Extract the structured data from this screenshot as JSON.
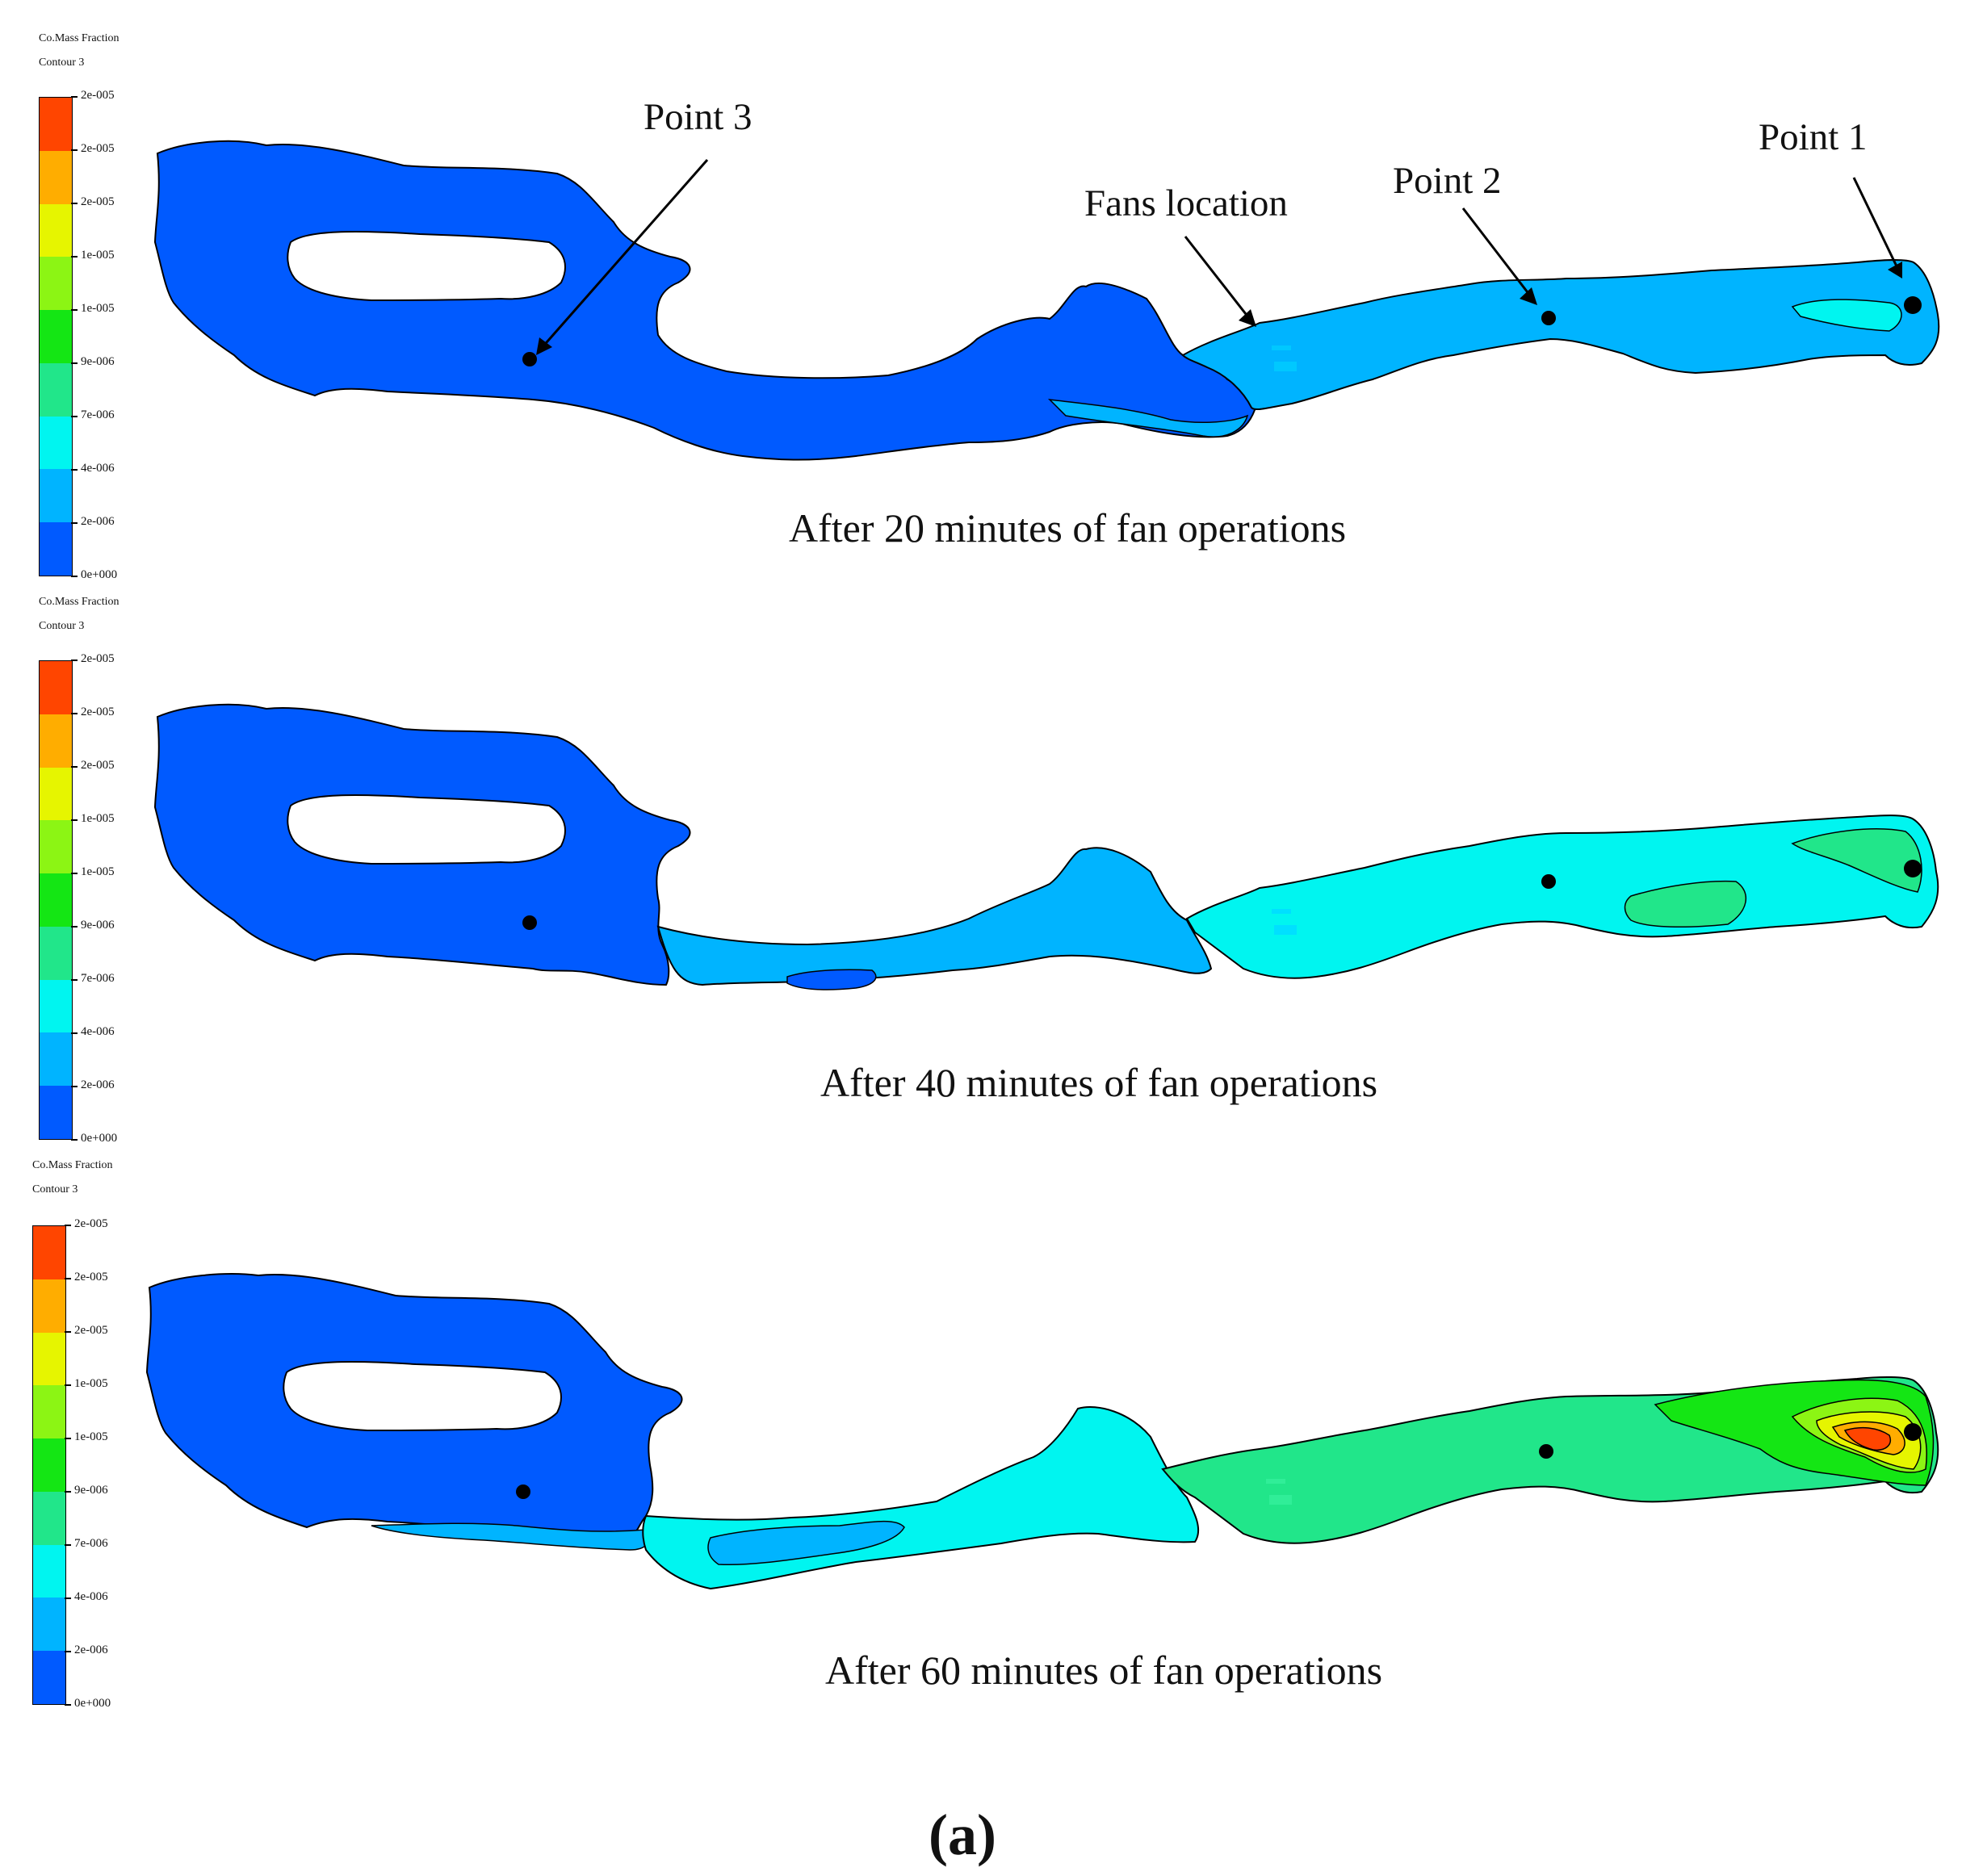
{
  "legend": {
    "title": "Co.Mass Fraction",
    "subtitle": "Contour 3",
    "labels": [
      "2e-005",
      "2e-005",
      "2e-005",
      "1e-005",
      "1e-005",
      "9e-006",
      "7e-006",
      "4e-006",
      "2e-006",
      "0e+000"
    ],
    "colors": [
      "#ff4500",
      "#ffad00",
      "#e6f500",
      "#8cf514",
      "#14e614",
      "#21e68a",
      "#00f5f0",
      "#00b4ff",
      "#005aff"
    ]
  },
  "annotations": {
    "point_3": "Point 3",
    "fans_location": "Fans location",
    "point_2": "Point 2",
    "point_1": "Point 1"
  },
  "panels": [
    {
      "caption": "After 20 minutes of fan operations"
    },
    {
      "caption": "After 40 minutes of fan operations"
    },
    {
      "caption": "After 60 minutes of fan operations"
    }
  ],
  "subfigure_label": "(a)"
}
